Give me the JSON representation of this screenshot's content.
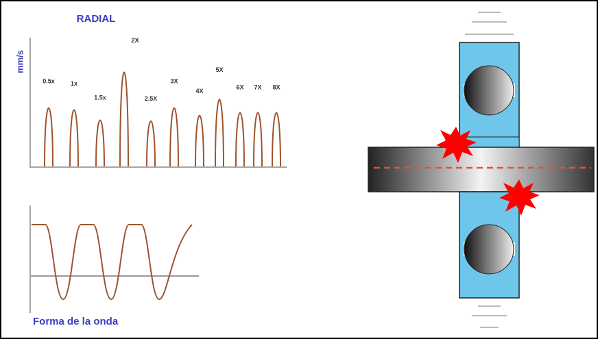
{
  "spectrum": {
    "title": "RADIAL",
    "ylabel": "mm/s",
    "ylim": [
      0,
      100
    ],
    "peaks": {
      "labels": [
        "0.5x",
        "1x",
        "1.5x",
        "2X",
        "2.5X",
        "3X",
        "4X",
        "5X",
        "6X",
        "7X",
        "8X"
      ],
      "values": [
        60,
        58,
        47,
        98,
        46,
        60,
        52,
        69,
        55,
        55,
        55
      ]
    }
  },
  "waveform": {
    "caption": "Forma de la onda"
  }
}
